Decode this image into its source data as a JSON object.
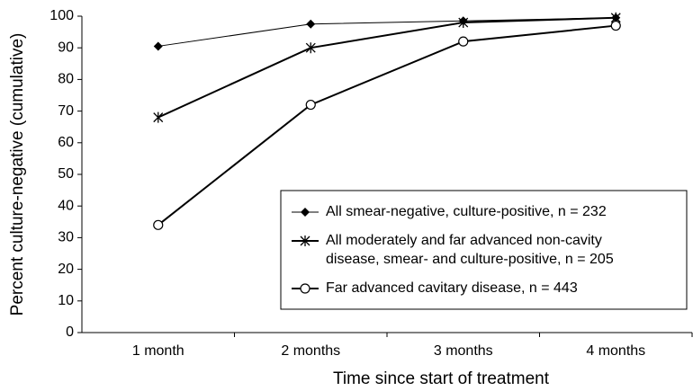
{
  "chart_data": {
    "type": "line",
    "x_label": "Time since start of treatment",
    "y_label": "Percent culture-negative (cumulative)",
    "categories": [
      "1 month",
      "2 months",
      "3 months",
      "4 months"
    ],
    "series": [
      {
        "name": "All smear-negative, culture-positive, n = 232",
        "color": "#000000",
        "marker": "diamond",
        "values": [
          90.5,
          97.5,
          98.5,
          99.5
        ]
      },
      {
        "name": "All moderately and far advanced non-cavity\ndisease, smear- and culture-positive, n = 205",
        "color": "#000000",
        "marker": "asterisk",
        "values": [
          68,
          90,
          98,
          99.5
        ]
      },
      {
        "name": "Far advanced cavitary disease, n = 443",
        "color": "#000000",
        "marker": "circle",
        "values": [
          34,
          72,
          92,
          97
        ]
      }
    ],
    "ylim": [
      0,
      100
    ],
    "yticks": [
      0,
      10,
      20,
      30,
      40,
      50,
      60,
      70,
      80,
      90,
      100
    ],
    "legend": "lower right"
  }
}
